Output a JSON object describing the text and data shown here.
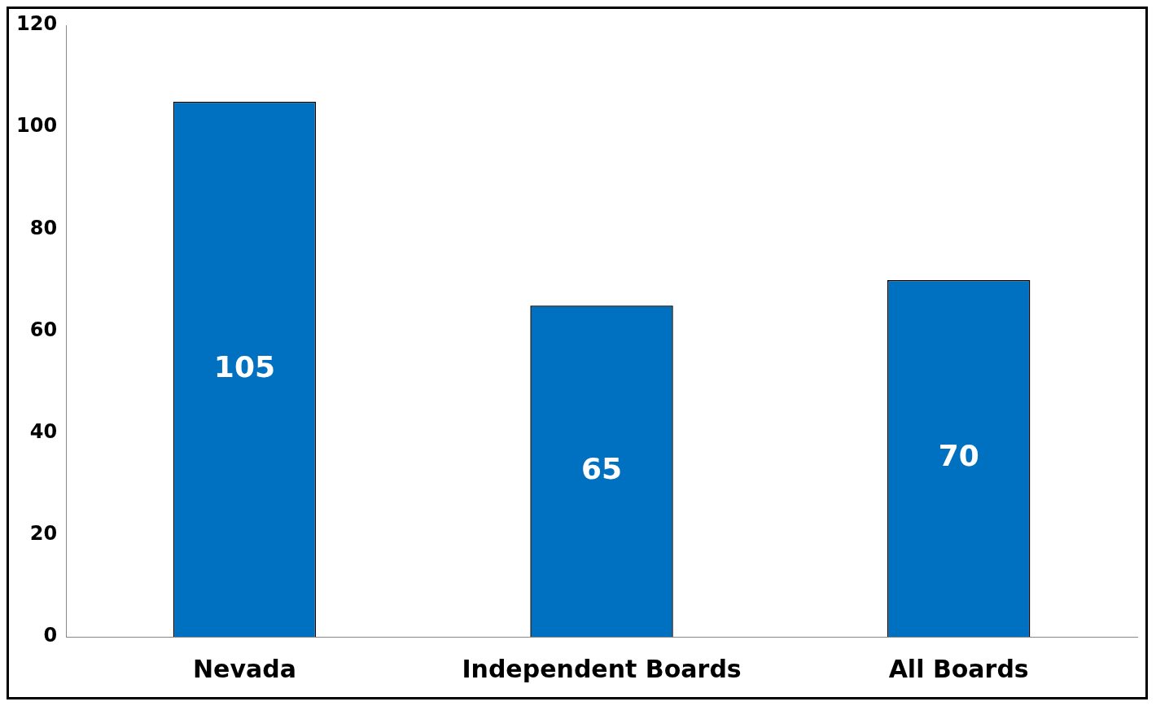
{
  "chart_data": {
    "type": "bar",
    "categories": [
      "Nevada",
      "Independent Boards",
      "All Boards"
    ],
    "values": [
      105,
      65,
      70
    ],
    "color": "#0070c0",
    "ylim": [
      0,
      120
    ],
    "yticks": [
      0,
      20,
      40,
      60,
      80,
      100,
      120
    ],
    "grid": false,
    "legend": false,
    "data_labels": true
  }
}
